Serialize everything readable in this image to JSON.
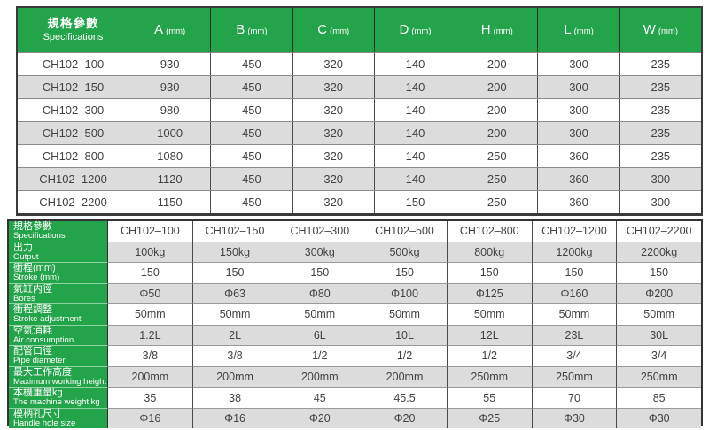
{
  "colors": {
    "green": "#23a34a",
    "stripe_gray": "#dcdcdc",
    "border_dark": "#3a3a3a",
    "grid_line": "#8a8a8a",
    "text": "#424242",
    "header_text": "#ffffff"
  },
  "dimensions_table": {
    "header": {
      "spec_zh": "規格參數",
      "spec_en": "Specifications",
      "columns": [
        {
          "letter": "A",
          "unit": "(mm)"
        },
        {
          "letter": "B",
          "unit": "(mm)"
        },
        {
          "letter": "C",
          "unit": "(mm)"
        },
        {
          "letter": "D",
          "unit": "(mm)"
        },
        {
          "letter": "H",
          "unit": "(mm)"
        },
        {
          "letter": "L",
          "unit": "(mm)"
        },
        {
          "letter": "W",
          "unit": "(mm)"
        }
      ]
    },
    "rows": [
      {
        "model": "CH102–100",
        "values": [
          "930",
          "450",
          "320",
          "140",
          "200",
          "300",
          "235"
        ]
      },
      {
        "model": "CH102–150",
        "values": [
          "930",
          "450",
          "320",
          "140",
          "200",
          "300",
          "235"
        ]
      },
      {
        "model": "CH102–300",
        "values": [
          "980",
          "450",
          "320",
          "140",
          "200",
          "300",
          "235"
        ]
      },
      {
        "model": "CH102–500",
        "values": [
          "1000",
          "450",
          "320",
          "140",
          "200",
          "300",
          "235"
        ]
      },
      {
        "model": "CH102–800",
        "values": [
          "1080",
          "450",
          "320",
          "140",
          "250",
          "360",
          "235"
        ]
      },
      {
        "model": "CH102–1200",
        "values": [
          "1120",
          "450",
          "320",
          "140",
          "250",
          "360",
          "300"
        ]
      },
      {
        "model": "CH102–2200",
        "values": [
          "1150",
          "450",
          "320",
          "150",
          "250",
          "360",
          "300"
        ]
      }
    ]
  },
  "specs_table": {
    "rows": [
      {
        "zh": "規格參數",
        "en": "Specifications",
        "values": [
          "CH102–100",
          "CH102–150",
          "CH102–300",
          "CH102–500",
          "CH102–800",
          "CH102–1200",
          "CH102–2200"
        ]
      },
      {
        "zh": "出力",
        "en": "Output",
        "values": [
          "100kg",
          "150kg",
          "300kg",
          "500kg",
          "800kg",
          "1200kg",
          "2200kg"
        ]
      },
      {
        "zh": "衝程(mm)",
        "en": "Stroke (mm)",
        "values": [
          "150",
          "150",
          "150",
          "150",
          "150",
          "150",
          "150"
        ]
      },
      {
        "zh": "氣缸内徑",
        "en": "Bores",
        "values": [
          "Φ50",
          "Φ63",
          "Φ80",
          "Φ100",
          "Φ125",
          "Φ160",
          "Φ200"
        ]
      },
      {
        "zh": "衝程調整",
        "en": "Stroke adjustment",
        "values": [
          "50mm",
          "50mm",
          "50mm",
          "50mm",
          "50mm",
          "50mm",
          "50mm"
        ]
      },
      {
        "zh": "空氣消耗",
        "en": "Air consumption",
        "values": [
          "1.2L",
          "2L",
          "6L",
          "10L",
          "12L",
          "23L",
          "30L"
        ]
      },
      {
        "zh": "配管口徑",
        "en": "Pipe diameter",
        "values": [
          "3/8",
          "3/8",
          "1/2",
          "1/2",
          "1/2",
          "3/4",
          "3/4"
        ]
      },
      {
        "zh": "最大工作高度",
        "en": "Maximum working height",
        "values": [
          "200mm",
          "200mm",
          "200mm",
          "200mm",
          "250mm",
          "250mm",
          "250mm"
        ]
      },
      {
        "zh": "本機重量kg",
        "en": "The machine weight kg",
        "values": [
          "35",
          "38",
          "45",
          "45.5",
          "55",
          "70",
          "85"
        ]
      },
      {
        "zh": "模柄孔尺寸",
        "en": "Handle hole size",
        "values": [
          "Φ16",
          "Φ16",
          "Φ20",
          "Φ20",
          "Φ25",
          "Φ30",
          "Φ30"
        ]
      }
    ]
  }
}
